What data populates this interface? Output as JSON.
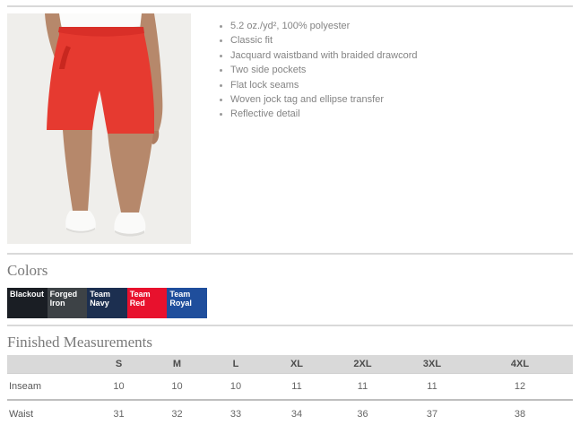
{
  "product": {
    "image_alt": "Model wearing red athletic shorts with white t-shirt and white shoes",
    "features": [
      "5.2 oz./yd², 100% polyester",
      "Classic fit",
      "Jacquard waistband with braided drawcord",
      "Two side pockets",
      "Flat lock seams",
      "Woven jock tag and ellipse transfer",
      "Reflective detail"
    ]
  },
  "colors_section": {
    "title": "Colors",
    "swatches": [
      {
        "name": "Blackout",
        "hex": "#1a1e24"
      },
      {
        "name": "Forged Iron",
        "hex": "#3d4246"
      },
      {
        "name": "Team Navy",
        "hex": "#1c2f50"
      },
      {
        "name": "Team Red",
        "hex": "#e8112d"
      },
      {
        "name": "Team Royal",
        "hex": "#1f4e9c"
      }
    ]
  },
  "measurements_section": {
    "title": "Finished Measurements",
    "columns": [
      "S",
      "M",
      "L",
      "XL",
      "2XL",
      "3XL",
      "4XL"
    ],
    "rows": [
      {
        "label": "Inseam",
        "values": [
          "10",
          "10",
          "10",
          "11",
          "11",
          "11",
          "12"
        ]
      },
      {
        "label": "Waist",
        "values": [
          "31",
          "32",
          "33",
          "34",
          "36",
          "37",
          "38"
        ]
      }
    ]
  }
}
